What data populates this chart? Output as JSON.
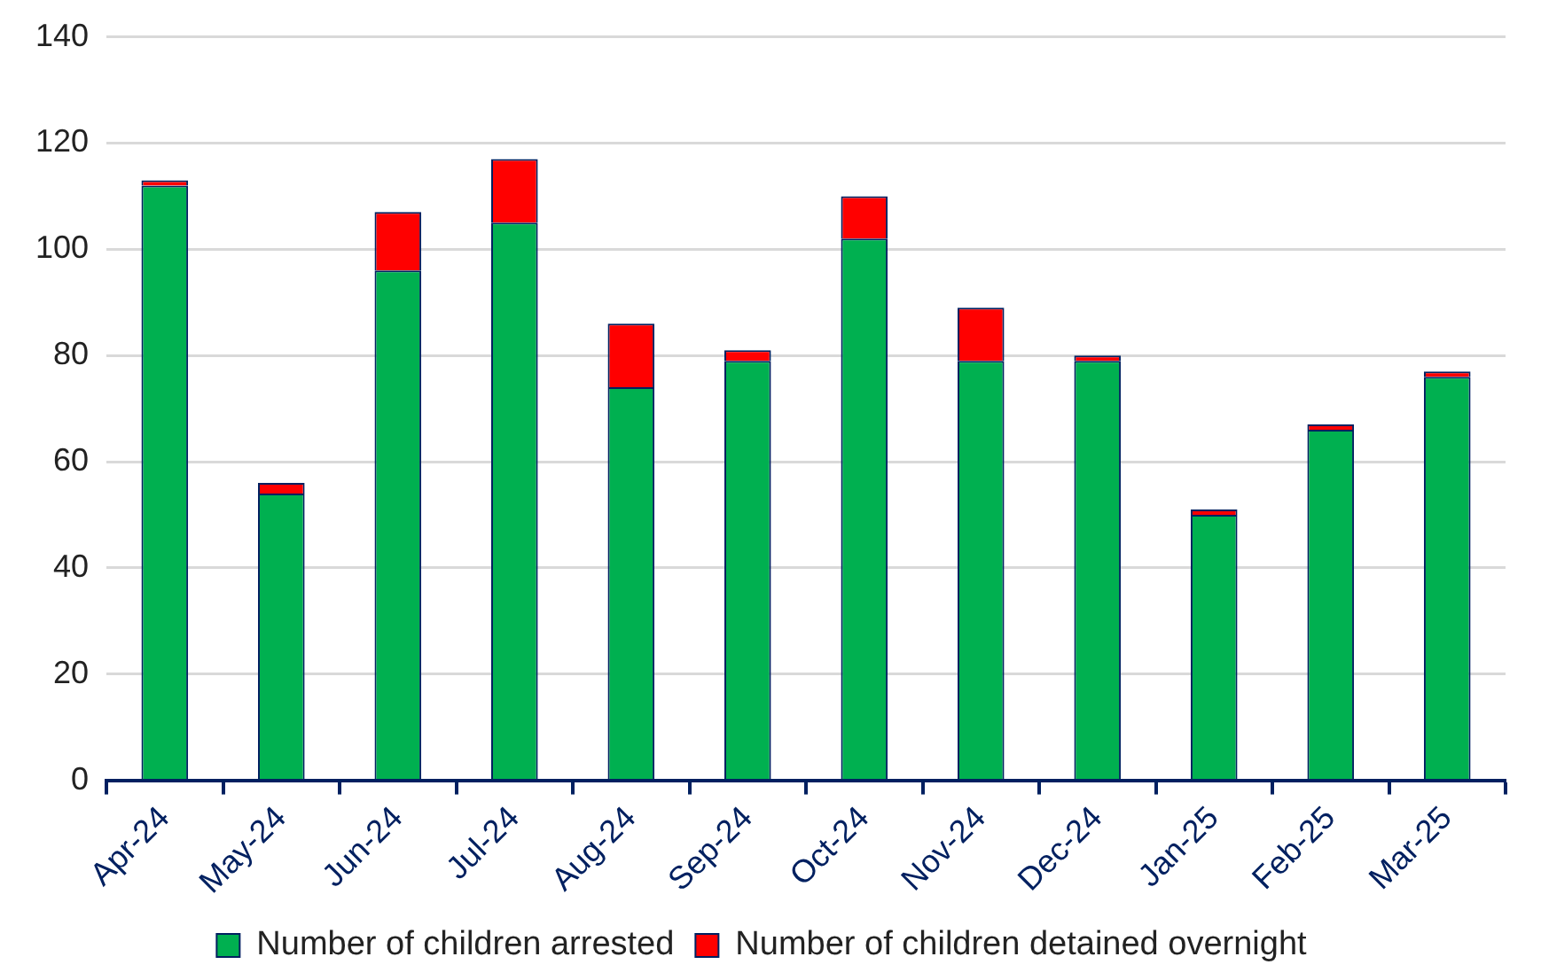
{
  "chart_data": {
    "type": "bar",
    "stacked": true,
    "categories": [
      "Apr-24",
      "May-24",
      "Jun-24",
      "Jul-24",
      "Aug-24",
      "Sep-24",
      "Oct-24",
      "Nov-24",
      "Dec-24",
      "Jan-25",
      "Feb-25",
      "Mar-25"
    ],
    "series": [
      {
        "name": "Number of children arrested",
        "color": "#00b050",
        "values": [
          112,
          54,
          96,
          105,
          74,
          79,
          102,
          79,
          79,
          50,
          66,
          76
        ]
      },
      {
        "name": "Number of children detained overnight",
        "color": "#ff0000",
        "values": [
          1,
          2,
          11,
          12,
          12,
          2,
          8,
          10,
          1,
          1,
          1,
          1
        ]
      }
    ],
    "ylim": [
      0,
      140
    ],
    "yticks": [
      0,
      20,
      40,
      60,
      80,
      100,
      120,
      140
    ],
    "grid": "y",
    "legend": "bottom"
  }
}
